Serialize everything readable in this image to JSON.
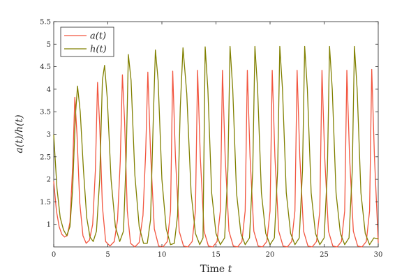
{
  "chart_data": {
    "type": "line",
    "xlabel": "Time t",
    "ylabel": "a(t)/h(t)",
    "xlim": [
      0,
      30
    ],
    "ylim": [
      0.5,
      5.5
    ],
    "xticks": [
      "0",
      "5",
      "10",
      "15",
      "20",
      "25",
      "30"
    ],
    "yticks": [
      "1",
      "1.5",
      "2",
      "2.5",
      "3",
      "3.5",
      "4",
      "4.5",
      "5",
      "5.5"
    ],
    "grid": false,
    "legend_position": "top-left",
    "series": [
      {
        "name": "a(t)",
        "color": "#f2553f",
        "x": [
          0,
          0.25,
          0.5,
          0.75,
          1.0,
          1.25,
          1.5,
          1.75,
          1.95,
          2.15,
          2.4,
          2.7,
          3.0,
          3.3,
          3.6,
          3.85,
          4.05,
          4.25,
          4.5,
          4.8,
          5.2,
          5.6,
          5.9,
          6.15,
          6.35,
          6.55,
          6.8,
          7.1,
          7.5,
          7.9,
          8.25,
          8.5,
          8.7,
          8.95,
          9.3,
          9.7,
          10.1,
          10.5,
          10.8,
          11.0,
          11.25,
          11.6,
          12.0,
          12.4,
          12.8,
          13.1,
          13.3,
          13.55,
          13.9,
          14.3,
          14.7,
          15.1,
          15.4,
          15.6,
          15.85,
          16.2,
          16.6,
          17.0,
          17.4,
          17.7,
          17.9,
          18.15,
          18.5,
          18.9,
          19.3,
          19.7,
          20.0,
          20.2,
          20.45,
          20.8,
          21.2,
          21.6,
          22.0,
          22.3,
          22.5,
          22.75,
          23.1,
          23.5,
          23.9,
          24.3,
          24.6,
          24.8,
          25.05,
          25.4,
          25.8,
          26.2,
          26.6,
          26.9,
          27.1,
          27.35,
          27.7,
          28.1,
          28.5,
          28.9,
          29.2,
          29.4,
          29.65,
          30.0
        ],
        "y": [
          1.95,
          1.3,
          0.95,
          0.78,
          0.72,
          0.75,
          1.05,
          2.3,
          3.82,
          3.0,
          1.5,
          0.75,
          0.58,
          0.65,
          1.0,
          2.2,
          4.15,
          3.2,
          1.4,
          0.62,
          0.52,
          0.62,
          1.1,
          2.4,
          4.32,
          3.3,
          1.3,
          0.58,
          0.5,
          0.6,
          1.2,
          2.6,
          4.38,
          2.6,
          0.9,
          0.52,
          0.5,
          0.62,
          1.3,
          4.4,
          2.5,
          0.85,
          0.52,
          0.5,
          0.62,
          1.3,
          4.42,
          2.5,
          0.85,
          0.52,
          0.5,
          0.62,
          1.3,
          4.42,
          2.5,
          0.85,
          0.52,
          0.5,
          0.62,
          1.3,
          4.42,
          2.5,
          0.85,
          0.52,
          0.5,
          0.62,
          1.3,
          4.42,
          2.5,
          0.85,
          0.52,
          0.5,
          0.62,
          1.3,
          4.42,
          2.5,
          0.85,
          0.52,
          0.5,
          0.62,
          1.3,
          4.42,
          2.5,
          0.85,
          0.52,
          0.5,
          0.62,
          1.3,
          4.42,
          2.5,
          0.85,
          0.52,
          0.5,
          0.62,
          1.3,
          4.44,
          2.5,
          0.6
        ]
      },
      {
        "name": "h(t)",
        "color": "#808000",
        "x": [
          0,
          0.3,
          0.6,
          0.9,
          1.2,
          1.5,
          1.75,
          2.0,
          2.2,
          2.45,
          2.75,
          3.05,
          3.35,
          3.65,
          3.95,
          4.25,
          4.5,
          4.7,
          4.95,
          5.3,
          5.7,
          6.1,
          6.45,
          6.7,
          6.9,
          7.15,
          7.5,
          7.9,
          8.3,
          8.65,
          8.95,
          9.2,
          9.4,
          9.65,
          10.0,
          10.4,
          10.8,
          11.15,
          11.45,
          11.7,
          11.95,
          12.3,
          12.7,
          13.1,
          13.5,
          13.8,
          14.0,
          14.25,
          14.6,
          15.0,
          15.4,
          15.8,
          16.1,
          16.3,
          16.55,
          16.9,
          17.3,
          17.7,
          18.1,
          18.4,
          18.6,
          18.85,
          19.2,
          19.6,
          20.0,
          20.4,
          20.7,
          20.9,
          21.15,
          21.5,
          21.9,
          22.3,
          22.7,
          23.0,
          23.2,
          23.45,
          23.8,
          24.2,
          24.6,
          25.0,
          25.3,
          25.5,
          25.75,
          26.1,
          26.5,
          26.9,
          27.3,
          27.6,
          27.8,
          28.05,
          28.4,
          28.8,
          29.2,
          29.6,
          30.0
        ],
        "y": [
          2.98,
          1.8,
          1.15,
          0.88,
          0.75,
          0.95,
          1.8,
          3.4,
          4.07,
          3.5,
          2.2,
          1.15,
          0.72,
          0.62,
          0.85,
          2.0,
          4.2,
          4.53,
          3.8,
          2.0,
          0.95,
          0.62,
          0.85,
          2.5,
          4.77,
          4.2,
          2.1,
          0.95,
          0.58,
          0.58,
          1.1,
          3.3,
          4.87,
          4.2,
          2.0,
          0.9,
          0.55,
          0.58,
          1.2,
          3.6,
          4.92,
          3.9,
          1.7,
          0.8,
          0.55,
          0.7,
          4.94,
          4.0,
          1.7,
          0.8,
          0.55,
          0.7,
          2.2,
          4.95,
          4.0,
          1.7,
          0.8,
          0.55,
          0.7,
          2.2,
          4.95,
          4.0,
          1.7,
          0.8,
          0.55,
          0.7,
          2.2,
          4.95,
          4.0,
          1.7,
          0.8,
          0.55,
          0.7,
          2.2,
          4.95,
          4.0,
          1.7,
          0.8,
          0.55,
          0.7,
          2.2,
          4.95,
          4.0,
          1.7,
          0.8,
          0.55,
          0.7,
          2.2,
          4.95,
          4.0,
          1.7,
          0.8,
          0.55,
          0.7,
          0.68
        ]
      }
    ]
  }
}
